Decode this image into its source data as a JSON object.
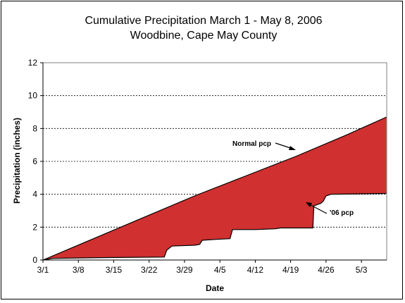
{
  "chart_data": {
    "type": "area",
    "title": "Cumulative Precipitation March 1 - May 8, 2006",
    "subtitle": "Woodbine, Cape May County",
    "xlabel": "Date",
    "ylabel": "Precipitation (inches)",
    "ylim": [
      0,
      12
    ],
    "yticks": [
      "0",
      "2",
      "4",
      "6",
      "8",
      "10",
      "12"
    ],
    "xticks": [
      "3/1",
      "3/8",
      "3/15",
      "3/22",
      "3/29",
      "4/5",
      "4/12",
      "4/19",
      "4/26",
      "5/3"
    ],
    "grid": true,
    "fill_color": "#d03030",
    "series": [
      {
        "name": "Normal pcp",
        "x": [
          0,
          10,
          20,
          30,
          40,
          50,
          60,
          68
        ],
        "values": [
          0,
          1.3,
          2.6,
          3.9,
          5.1,
          6.3,
          7.6,
          8.7
        ]
      },
      {
        "name": "'06 pcp",
        "x": [
          0,
          2,
          13,
          24,
          24.5,
          25.5,
          30,
          31,
          31.5,
          34,
          37,
          37.5,
          42,
          46,
          47,
          53.4,
          53.6,
          55,
          55.5,
          56,
          57,
          68
        ],
        "values": [
          0,
          0.1,
          0.15,
          0.18,
          0.6,
          0.85,
          0.9,
          0.95,
          1.2,
          1.25,
          1.3,
          1.85,
          1.85,
          1.9,
          1.95,
          1.95,
          3.3,
          3.45,
          3.6,
          3.9,
          4.0,
          4.05
        ]
      }
    ],
    "annotations": [
      "Normal pcp",
      "'06 pcp"
    ]
  }
}
